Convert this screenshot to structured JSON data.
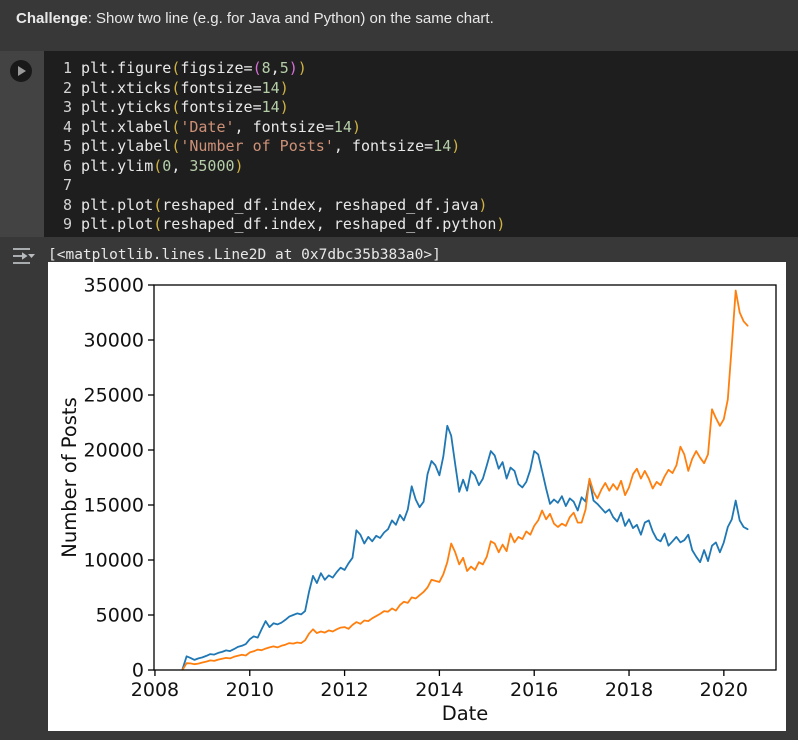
{
  "markdown_cell": {
    "bold": "Challenge",
    "text": ": Show two line (e.g. for Java and Python) on the same chart."
  },
  "icons": {
    "run_button": "play-circle-icon",
    "output_menu": "output-options-icon"
  },
  "code_cell": {
    "lines": [
      {
        "num": "1",
        "tokens": [
          [
            "p",
            "plt.figure"
          ],
          [
            "b1",
            "("
          ],
          [
            "p",
            "figsize="
          ],
          [
            "b2",
            "("
          ],
          [
            "num",
            "8"
          ],
          [
            "p",
            ","
          ],
          [
            "num",
            "5"
          ],
          [
            "b2",
            ")"
          ],
          [
            "b1",
            ")"
          ]
        ]
      },
      {
        "num": "2",
        "tokens": [
          [
            "p",
            "plt.xticks"
          ],
          [
            "b1",
            "("
          ],
          [
            "p",
            "fontsize="
          ],
          [
            "num",
            "14"
          ],
          [
            "b1",
            ")"
          ]
        ]
      },
      {
        "num": "3",
        "tokens": [
          [
            "p",
            "plt.yticks"
          ],
          [
            "b1",
            "("
          ],
          [
            "p",
            "fontsize="
          ],
          [
            "num",
            "14"
          ],
          [
            "b1",
            ")"
          ]
        ]
      },
      {
        "num": "4",
        "tokens": [
          [
            "p",
            "plt.xlabel"
          ],
          [
            "b1",
            "("
          ],
          [
            "str",
            "'Date'"
          ],
          [
            "p",
            ", fontsize="
          ],
          [
            "num",
            "14"
          ],
          [
            "b1",
            ")"
          ]
        ]
      },
      {
        "num": "5",
        "tokens": [
          [
            "p",
            "plt.ylabel"
          ],
          [
            "b1",
            "("
          ],
          [
            "str",
            "'Number of Posts'"
          ],
          [
            "p",
            ", fontsize="
          ],
          [
            "num",
            "14"
          ],
          [
            "b1",
            ")"
          ]
        ]
      },
      {
        "num": "6",
        "tokens": [
          [
            "p",
            "plt.ylim"
          ],
          [
            "b1",
            "("
          ],
          [
            "num",
            "0"
          ],
          [
            "p",
            ", "
          ],
          [
            "num",
            "35000"
          ],
          [
            "b1",
            ")"
          ]
        ]
      },
      {
        "num": "7",
        "tokens": []
      },
      {
        "num": "8",
        "tokens": [
          [
            "p",
            "plt.plot"
          ],
          [
            "b1",
            "("
          ],
          [
            "p",
            "reshaped_df.index, reshaped_df.java"
          ],
          [
            "b1",
            ")"
          ]
        ]
      },
      {
        "num": "9",
        "tokens": [
          [
            "p",
            "plt.plot"
          ],
          [
            "b1",
            "("
          ],
          [
            "p",
            "reshaped_df.index, reshaped_df.python"
          ],
          [
            "b1",
            ")"
          ]
        ]
      }
    ]
  },
  "output": {
    "repr_text": "[<matplotlib.lines.Line2D at 0x7dbc35b383a0>]"
  },
  "chart_data": {
    "type": "line",
    "xlabel": "Date",
    "ylabel": "Number of Posts",
    "xlim": [
      2007.98,
      2021.1
    ],
    "ylim": [
      0,
      35000
    ],
    "xticks": [
      2008,
      2010,
      2012,
      2014,
      2016,
      2018,
      2020
    ],
    "yticks": [
      0,
      5000,
      10000,
      15000,
      20000,
      25000,
      30000,
      35000
    ],
    "grid": false,
    "legend": "none",
    "background": "#ffffff",
    "x_start_year": 2008.5833,
    "x_step_years": 0.0833333,
    "series": [
      {
        "name": "java",
        "color": "#1f77b4",
        "values": [
          100,
          1250,
          1100,
          920,
          1050,
          1150,
          1280,
          1450,
          1400,
          1550,
          1650,
          1780,
          1720,
          1900,
          2100,
          2200,
          2350,
          2800,
          3050,
          2950,
          3700,
          4450,
          3900,
          4250,
          4150,
          4300,
          4550,
          4850,
          5000,
          5150,
          5050,
          5350,
          7100,
          8550,
          7900,
          8800,
          8200,
          8600,
          8400,
          8900,
          9300,
          9100,
          9700,
          10200,
          12700,
          12300,
          11500,
          12100,
          11700,
          12200,
          12000,
          12500,
          12800,
          13600,
          13200,
          14100,
          13600,
          14600,
          16700,
          15500,
          14800,
          15300,
          17800,
          19000,
          18600,
          17700,
          19400,
          22200,
          21300,
          18700,
          16200,
          17300,
          16300,
          18100,
          17700,
          16800,
          17400,
          18600,
          19900,
          19500,
          18300,
          18900,
          17400,
          18400,
          18100,
          16900,
          16600,
          17100,
          18200,
          19900,
          19600,
          18100,
          16500,
          15100,
          15500,
          15200,
          15800,
          14900,
          15600,
          15300,
          14500,
          15700,
          15300,
          17300,
          15400,
          15100,
          14700,
          14300,
          14600,
          13900,
          13500,
          14300,
          13100,
          13700,
          12900,
          13200,
          12300,
          13400,
          13600,
          12600,
          11900,
          11700,
          12400,
          11300,
          11700,
          12100,
          11600,
          11800,
          12300,
          10900,
          10300,
          9800,
          10900,
          9900,
          11300,
          11600,
          10700,
          11600,
          13000,
          13700,
          15400,
          13600,
          13000,
          12800
        ]
      },
      {
        "name": "python",
        "color": "#ff7f0e",
        "values": [
          30,
          620,
          600,
          530,
          580,
          680,
          760,
          870,
          830,
          950,
          1030,
          1100,
          1050,
          1200,
          1300,
          1380,
          1320,
          1600,
          1700,
          1850,
          1800,
          1950,
          2050,
          2150,
          2050,
          2200,
          2300,
          2450,
          2400,
          2500,
          2450,
          2700,
          3300,
          3700,
          3350,
          3500,
          3400,
          3600,
          3500,
          3700,
          3850,
          3900,
          3750,
          4100,
          4350,
          4200,
          4500,
          4450,
          4700,
          4900,
          5100,
          5350,
          5300,
          5600,
          5400,
          5900,
          6200,
          6100,
          6600,
          6500,
          6800,
          7100,
          7500,
          8200,
          8100,
          8000,
          8700,
          9800,
          11500,
          10700,
          9600,
          10200,
          9000,
          9400,
          9100,
          9800,
          9600,
          10300,
          11700,
          11500,
          10700,
          11400,
          10800,
          12400,
          11600,
          12100,
          11900,
          12600,
          12300,
          13100,
          13600,
          14500,
          13700,
          14200,
          13300,
          13000,
          13300,
          13100,
          13900,
          14300,
          13400,
          13400,
          14600,
          17400,
          16200,
          15600,
          16400,
          17000,
          16300,
          16900,
          16400,
          17200,
          15900,
          16600,
          17800,
          18300,
          17400,
          18100,
          17400,
          16500,
          17100,
          16800,
          17600,
          18200,
          17900,
          18600,
          20300,
          19600,
          18100,
          19200,
          19900,
          19300,
          18800,
          19600,
          23700,
          22900,
          22200,
          22800,
          24600,
          29500,
          34500,
          32500,
          31700,
          31300
        ]
      }
    ]
  }
}
